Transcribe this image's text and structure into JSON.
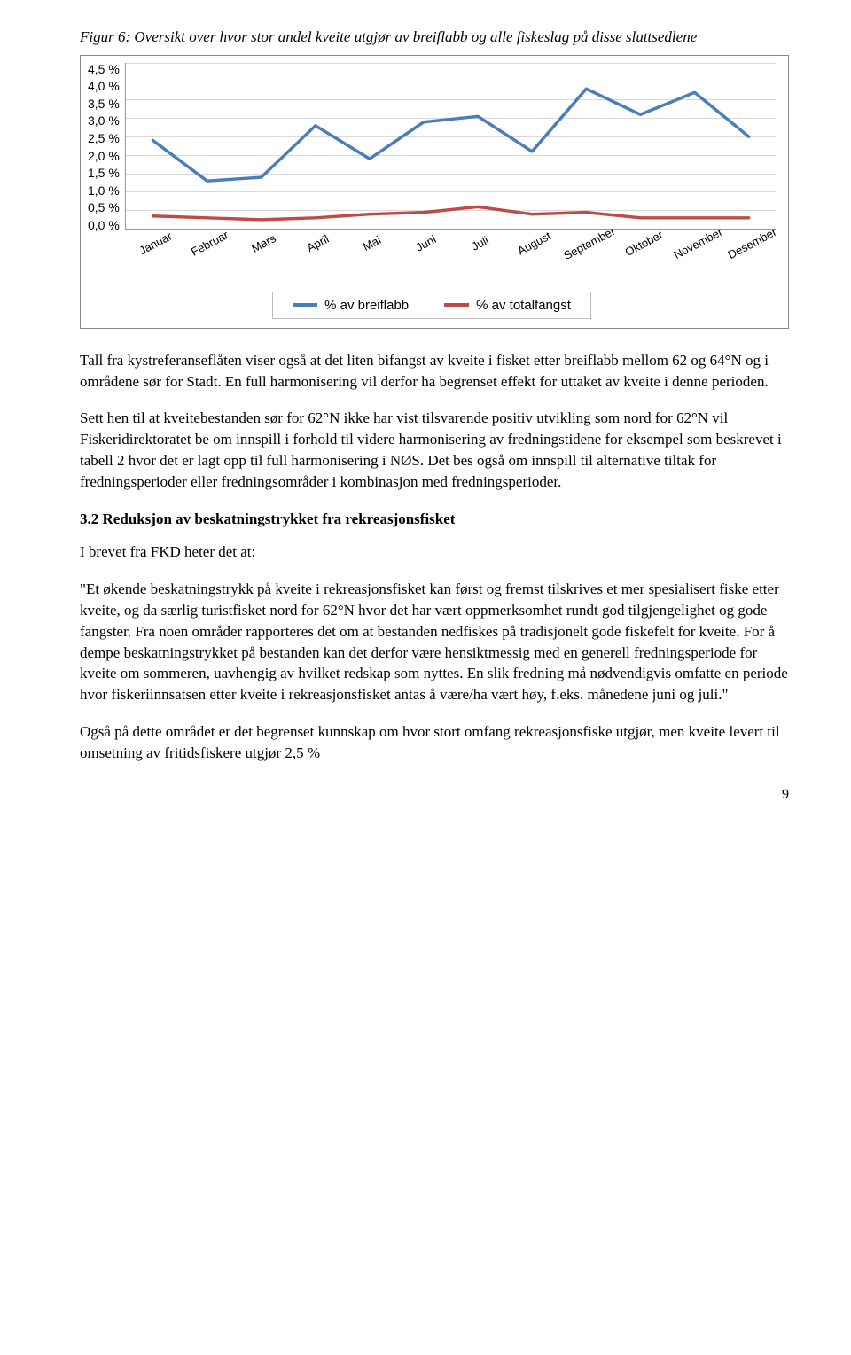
{
  "figure_caption": "Figur 6: Oversikt over hvor stor andel kveite utgjør av breiflabb og alle fiskeslag på disse sluttsedlene",
  "chart": {
    "type": "line",
    "categories": [
      "Januar",
      "Februar",
      "Mars",
      "April",
      "Mai",
      "Juni",
      "Juli",
      "August",
      "September",
      "Oktober",
      "November",
      "Desember"
    ],
    "yticks": [
      "4,5 %",
      "4,0 %",
      "3,5 %",
      "3,0 %",
      "2,5 %",
      "2,0 %",
      "1,5 %",
      "1,0 %",
      "0,5 %",
      "0,0 %"
    ],
    "ylim": [
      0,
      4.5
    ],
    "ytick_step": 0.5,
    "grid_color": "#d9d9d9",
    "background_color": "#ffffff",
    "border_color": "#888888",
    "label_fontsize": 14,
    "line_width": 3.5,
    "series": [
      {
        "name": "% av breiflabb",
        "color": "#4a7ebb",
        "values": [
          2.4,
          1.3,
          1.4,
          2.8,
          1.9,
          2.9,
          3.05,
          2.1,
          3.8,
          3.1,
          3.7,
          2.5
        ]
      },
      {
        "name": "% av totalfangst",
        "color": "#be4b48",
        "values": [
          0.35,
          0.3,
          0.25,
          0.3,
          0.4,
          0.45,
          0.6,
          0.4,
          0.45,
          0.3,
          0.3,
          0.3
        ]
      }
    ],
    "legend": {
      "items": [
        "% av breiflabb",
        "% av totalfangst"
      ]
    }
  },
  "paragraphs": {
    "p1": "Tall fra kystreferanseflåten viser også at det liten bifangst av kveite i fisket etter breiflabb mellom 62 og 64°N og i områdene sør for Stadt. En full harmonisering vil derfor ha begrenset effekt for uttaket av kveite i denne perioden.",
    "p2": "Sett hen til at kveitebestanden sør for 62°N ikke har vist tilsvarende positiv utvikling som nord for 62°N vil Fiskeridirektoratet be om innspill i forhold til videre harmonisering av fredningstidene for eksempel som beskrevet i tabell 2 hvor det er lagt opp til full harmonisering i NØS. Det bes også om innspill til alternative tiltak for fredningsperioder eller fredningsområder i kombinasjon med fredningsperioder.",
    "p3": "I brevet fra FKD heter det at:",
    "p4": "\"Et økende beskatningstrykk på kveite i rekreasjonsfisket kan først og fremst tilskrives et mer spesialisert fiske etter kveite, og da særlig turistfisket nord for 62°N hvor det har vært oppmerksomhet rundt god tilgjengelighet og gode fangster. Fra noen områder rapporteres det om at bestanden nedfiskes på tradisjonelt gode fiskefelt for kveite. For å dempe beskatningstrykket på bestanden kan det derfor være hensiktmessig med en generell fredningsperiode for kveite om sommeren, uavhengig av hvilket redskap som nyttes. En slik fredning må nødvendigvis omfatte en periode hvor fiskeriinnsatsen etter kveite i rekreasjonsfisket antas å være/ha vært høy, f.eks. månedene juni og juli.\"",
    "p5": "Også på dette området er det begrenset kunnskap om hvor stort omfang rekreasjonsfiske utgjør, men kveite levert til omsetning av fritidsfiskere utgjør 2,5 %"
  },
  "section_heading": "3.2   Reduksjon av beskatningstrykket fra rekreasjonsfisket",
  "page_number": "9"
}
